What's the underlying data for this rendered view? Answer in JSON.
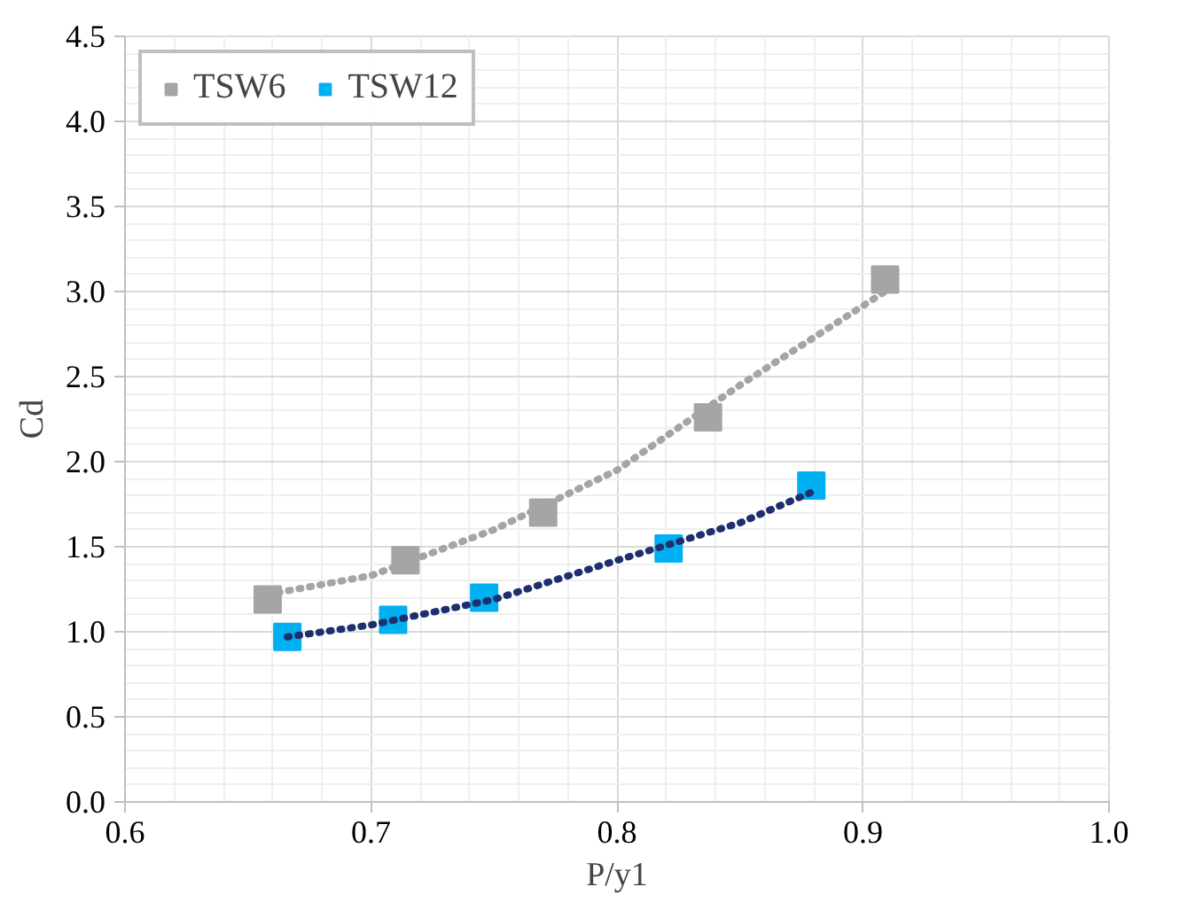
{
  "chart_data": {
    "type": "scatter",
    "xlabel": "P/y1",
    "ylabel": "Cd",
    "xlim": [
      0.6,
      1.0
    ],
    "xticks": [
      {
        "value": 0.6,
        "label": "0.6"
      },
      {
        "value": 0.7,
        "label": "0.7"
      },
      {
        "value": 0.8,
        "label": "0.8"
      },
      {
        "value": 0.9,
        "label": "0.9"
      },
      {
        "value": 1.0,
        "label": "1.0"
      }
    ],
    "ylim": [
      0,
      4.5
    ],
    "yticks": [
      {
        "value": 0,
        "label": "0.0"
      },
      {
        "value": 0.5,
        "label": "0.5"
      },
      {
        "value": 1.0,
        "label": "1.0"
      },
      {
        "value": 1.5,
        "label": "1.5"
      },
      {
        "value": 2.0,
        "label": "2.0"
      },
      {
        "value": 2.5,
        "label": "2.5"
      },
      {
        "value": 3.0,
        "label": "3.0"
      },
      {
        "value": 3.5,
        "label": "3.5"
      },
      {
        "value": 4.0,
        "label": "4.0"
      },
      {
        "value": 4.5,
        "label": "4.5"
      }
    ],
    "grid": true,
    "legend": "top left",
    "marker": "square",
    "series": [
      {
        "name": "TSW6",
        "color": "#a5a5a5",
        "x": [
          0.658,
          0.714,
          0.77,
          0.837,
          0.909
        ],
        "values": [
          1.19,
          1.42,
          1.7,
          2.26,
          3.07
        ]
      },
      {
        "name": "TSW12",
        "color": "#00b0f0",
        "x": [
          0.666,
          0.709,
          0.746,
          0.821,
          0.879
        ],
        "values": [
          0.97,
          1.07,
          1.2,
          1.49,
          1.86
        ]
      },
      {
        "type": "line",
        "color": "#a5a5a5",
        "marker": "none",
        "line_style": "dotted",
        "x": [
          0.658,
          0.7,
          0.75,
          0.8,
          0.85,
          0.909
        ],
        "values": [
          1.22,
          1.33,
          1.6,
          1.95,
          2.45,
          3.0
        ]
      },
      {
        "type": "line",
        "color": "#1f2f6e",
        "marker": "none",
        "line_style": "dotted",
        "x": [
          0.666,
          0.7,
          0.75,
          0.8,
          0.85,
          0.879
        ],
        "values": [
          0.97,
          1.04,
          1.19,
          1.42,
          1.64,
          1.82
        ]
      }
    ]
  }
}
